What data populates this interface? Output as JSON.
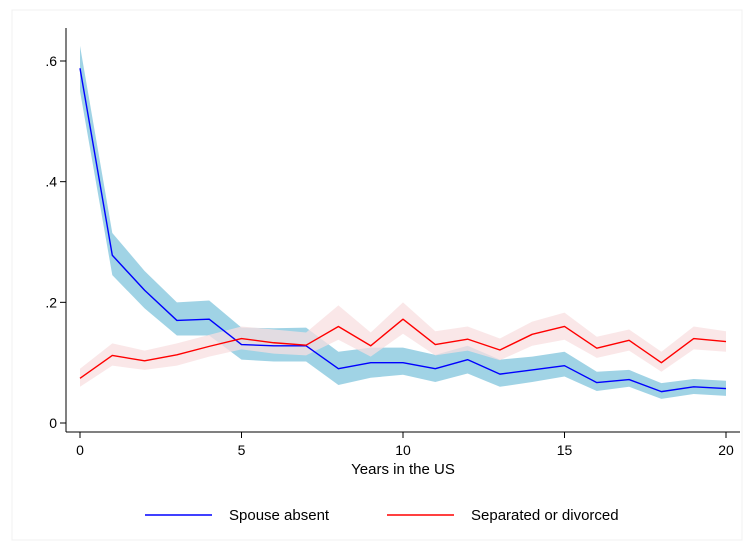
{
  "chart_data": {
    "type": "line",
    "title": "",
    "xlabel": "Years in the US",
    "ylabel": "",
    "xlim": [
      0,
      20
    ],
    "ylim": [
      0,
      0.6
    ],
    "xticks": [
      0,
      5,
      10,
      15,
      20
    ],
    "xtick_labels": [
      "0",
      "5",
      "10",
      "15",
      "20"
    ],
    "yticks": [
      0,
      0.2,
      0.4,
      0.6
    ],
    "ytick_labels": [
      "0",
      ".2",
      ".4",
      ".6"
    ],
    "grid": false,
    "legend_position": "bottom",
    "x": [
      0,
      1,
      2,
      3,
      4,
      5,
      6,
      7,
      8,
      9,
      10,
      11,
      12,
      13,
      14,
      15,
      16,
      17,
      18,
      19,
      20
    ],
    "series": [
      {
        "name": "Spouse absent",
        "color": "#0000ff",
        "band_color": "#8fcbe0",
        "values": [
          0.588,
          0.278,
          0.22,
          0.17,
          0.172,
          0.13,
          0.128,
          0.128,
          0.09,
          0.1,
          0.1,
          0.09,
          0.105,
          0.081,
          0.088,
          0.095,
          0.067,
          0.072,
          0.052,
          0.06,
          0.057
        ],
        "lower": [
          0.55,
          0.245,
          0.19,
          0.145,
          0.145,
          0.105,
          0.102,
          0.102,
          0.063,
          0.075,
          0.08,
          0.068,
          0.082,
          0.06,
          0.068,
          0.077,
          0.053,
          0.06,
          0.04,
          0.048,
          0.045
        ],
        "upper": [
          0.625,
          0.315,
          0.252,
          0.2,
          0.203,
          0.158,
          0.157,
          0.158,
          0.118,
          0.125,
          0.125,
          0.113,
          0.128,
          0.105,
          0.11,
          0.118,
          0.085,
          0.088,
          0.066,
          0.073,
          0.07
        ]
      },
      {
        "name": "Separated or divorced",
        "color": "#ff0000",
        "band_color": "#f8dfe0",
        "values": [
          0.074,
          0.112,
          0.103,
          0.113,
          0.127,
          0.14,
          0.133,
          0.129,
          0.16,
          0.128,
          0.172,
          0.13,
          0.139,
          0.121,
          0.147,
          0.16,
          0.124,
          0.137,
          0.1,
          0.14,
          0.135
        ],
        "lower": [
          0.06,
          0.095,
          0.088,
          0.095,
          0.11,
          0.122,
          0.115,
          0.112,
          0.138,
          0.11,
          0.148,
          0.112,
          0.12,
          0.104,
          0.128,
          0.138,
          0.108,
          0.12,
          0.085,
          0.122,
          0.118
        ],
        "upper": [
          0.09,
          0.132,
          0.12,
          0.132,
          0.146,
          0.16,
          0.155,
          0.15,
          0.195,
          0.15,
          0.2,
          0.152,
          0.16,
          0.14,
          0.168,
          0.183,
          0.143,
          0.155,
          0.118,
          0.16,
          0.152
        ]
      }
    ]
  }
}
